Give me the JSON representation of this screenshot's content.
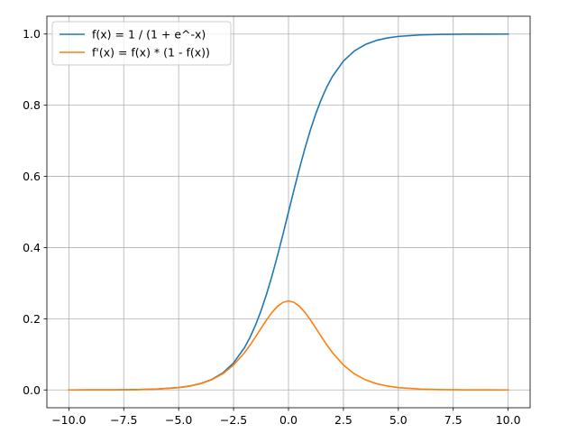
{
  "chart_data": {
    "type": "line",
    "title": "",
    "xlabel": "",
    "ylabel": "",
    "xlim": [
      -11.0,
      11.0
    ],
    "ylim": [
      -0.05,
      1.05
    ],
    "grid": true,
    "legend_position": "top-left",
    "x_ticks": [
      -10.0,
      -7.5,
      -5.0,
      -2.5,
      0.0,
      2.5,
      5.0,
      7.5,
      10.0
    ],
    "x_tick_labels": [
      "−10.0",
      "−7.5",
      "−5.0",
      "−2.5",
      "0.0",
      "2.5",
      "5.0",
      "7.5",
      "10.0"
    ],
    "y_ticks": [
      0.0,
      0.2,
      0.4,
      0.6,
      0.8,
      1.0
    ],
    "y_tick_labels": [
      "0.0",
      "0.2",
      "0.4",
      "0.6",
      "0.8",
      "1.0"
    ],
    "x": [
      -10,
      -9,
      -8,
      -7,
      -6,
      -5,
      -4.5,
      -4,
      -3.5,
      -3,
      -2.5,
      -2,
      -1.75,
      -1.5,
      -1.25,
      -1,
      -0.75,
      -0.5,
      -0.25,
      0,
      0.25,
      0.5,
      0.75,
      1,
      1.25,
      1.5,
      1.75,
      2,
      2.5,
      3,
      3.5,
      4,
      4.5,
      5,
      6,
      7,
      8,
      9,
      10
    ],
    "series": [
      {
        "name": "f(x) = 1 / (1 + e^-x)",
        "color": "#1f77b4",
        "values": [
          5e-05,
          0.00012,
          0.00034,
          0.00091,
          0.00247,
          0.00669,
          0.01099,
          0.01799,
          0.02931,
          0.04743,
          0.07586,
          0.1192,
          0.14805,
          0.18243,
          0.2227,
          0.26894,
          0.32082,
          0.37754,
          0.43782,
          0.5,
          0.56218,
          0.62246,
          0.67918,
          0.73106,
          0.7773,
          0.81757,
          0.85195,
          0.8808,
          0.92414,
          0.95257,
          0.97069,
          0.98201,
          0.98901,
          0.99331,
          0.99753,
          0.99909,
          0.99966,
          0.99988,
          0.99995
        ]
      },
      {
        "name": "f'(x) = f(x) * (1 - f(x))",
        "color": "#ff7f0e",
        "values": [
          5e-05,
          0.00012,
          0.00034,
          0.00091,
          0.00247,
          0.00665,
          0.01087,
          0.01766,
          0.02845,
          0.04518,
          0.0701,
          0.10499,
          0.12613,
          0.14915,
          0.1731,
          0.19661,
          0.21789,
          0.235,
          0.24613,
          0.25,
          0.24613,
          0.235,
          0.21789,
          0.19661,
          0.1731,
          0.14915,
          0.12613,
          0.10499,
          0.0701,
          0.04518,
          0.02845,
          0.01766,
          0.01087,
          0.00665,
          0.00247,
          0.00091,
          0.00034,
          0.00012,
          5e-05
        ]
      }
    ]
  }
}
